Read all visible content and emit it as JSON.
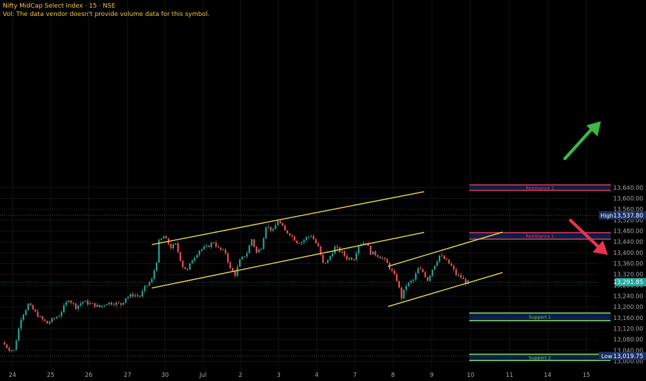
{
  "header": {
    "symbol_line": "Nifty MidCap Select Index · 15 · NSE",
    "volume_note": "Vol: The data vendor doesn't provide volume data for this symbol."
  },
  "colors": {
    "background": "#000000",
    "grid": "#141414",
    "up": "#26a69a",
    "down": "#ef5350",
    "trendline": "#f2e04b",
    "resistance_border": "#e5395b",
    "support_border": "#8ae26b",
    "zone_fill": "#0b1f44",
    "zone_text_resistance": "#e5395b",
    "zone_text_support": "#7ac96a",
    "arrow_up": "#3cb846",
    "arrow_down": "#e8334f",
    "axis_text": "#a6a6a6",
    "last_price_bg": "#26a69a",
    "hilo_bg": "#1b2f63"
  },
  "chart_data": {
    "type": "candlestick",
    "y_axis": {
      "range": [
        12990,
        13655
      ],
      "ticks": [
        "13,640.00",
        "13,600.00",
        "13,560.00",
        "13,520.00",
        "13,480.00",
        "13,440.00",
        "13,400.00",
        "13,360.00",
        "13,320.00",
        "13,280.00",
        "13,240.00",
        "13,200.00",
        "13,160.00",
        "13,120.00",
        "13,080.00",
        "13,040.00",
        "13,000.00"
      ]
    },
    "x_axis": {
      "labels": [
        "24",
        "25",
        "26",
        "27",
        "30",
        "Jul",
        "2",
        "3",
        "4",
        "7",
        "8",
        "9",
        "10",
        "11",
        "14",
        "15"
      ]
    },
    "price_path": [
      [
        0,
        13070
      ],
      [
        3,
        13045
      ],
      [
        5,
        13040
      ],
      [
        8,
        13160
      ],
      [
        11,
        13210
      ],
      [
        16,
        13160
      ],
      [
        19,
        13140
      ],
      [
        24,
        13170
      ],
      [
        28,
        13230
      ],
      [
        31,
        13200
      ],
      [
        34,
        13220
      ],
      [
        38,
        13210
      ],
      [
        41,
        13200
      ],
      [
        44,
        13215
      ],
      [
        47,
        13215
      ],
      [
        50,
        13210
      ],
      [
        52,
        13235
      ],
      [
        55,
        13245
      ],
      [
        58,
        13240
      ],
      [
        60,
        13270
      ],
      [
        63,
        13300
      ],
      [
        65,
        13370
      ],
      [
        66,
        13440
      ],
      [
        68,
        13460
      ],
      [
        71,
        13420
      ],
      [
        73,
        13430
      ],
      [
        76,
        13350
      ],
      [
        78,
        13335
      ],
      [
        80,
        13375
      ],
      [
        83,
        13410
      ],
      [
        86,
        13420
      ],
      [
        89,
        13440
      ],
      [
        91,
        13415
      ],
      [
        94,
        13400
      ],
      [
        96,
        13340
      ],
      [
        98,
        13320
      ],
      [
        100,
        13370
      ],
      [
        103,
        13400
      ],
      [
        105,
        13450
      ],
      [
        107,
        13400
      ],
      [
        109,
        13420
      ],
      [
        111,
        13500
      ],
      [
        114,
        13480
      ],
      [
        116,
        13520
      ],
      [
        119,
        13480
      ],
      [
        121,
        13470
      ],
      [
        124,
        13440
      ],
      [
        126,
        13440
      ],
      [
        128,
        13455
      ],
      [
        130,
        13465
      ],
      [
        133,
        13420
      ],
      [
        135,
        13360
      ],
      [
        137,
        13370
      ],
      [
        140,
        13420
      ],
      [
        143,
        13400
      ],
      [
        145,
        13380
      ],
      [
        148,
        13380
      ],
      [
        150,
        13430
      ],
      [
        153,
        13440
      ],
      [
        155,
        13400
      ],
      [
        157,
        13395
      ],
      [
        160,
        13380
      ],
      [
        162,
        13360
      ],
      [
        164,
        13330
      ],
      [
        166,
        13300
      ],
      [
        168,
        13235
      ],
      [
        170,
        13280
      ],
      [
        173,
        13300
      ],
      [
        175,
        13340
      ],
      [
        177,
        13330
      ],
      [
        179,
        13300
      ],
      [
        181,
        13340
      ],
      [
        184,
        13390
      ],
      [
        187,
        13370
      ],
      [
        189,
        13350
      ],
      [
        191,
        13320
      ],
      [
        193,
        13310
      ],
      [
        195,
        13290
      ],
      [
        196,
        13291.85
      ]
    ],
    "trend_channels": [
      {
        "upper": [
          [
            219,
            13430
          ],
          [
            612,
            13625
          ]
        ],
        "lower": [
          [
            219,
            13270
          ],
          [
            612,
            13475
          ]
        ]
      },
      {
        "upper": [
          [
            560,
            13350
          ],
          [
            725,
            13476
          ]
        ],
        "lower": [
          [
            560,
            13202
          ],
          [
            725,
            13327
          ]
        ]
      }
    ],
    "zones": [
      {
        "label": "Resistance 2",
        "kind": "resistance",
        "from": 13630,
        "to": 13650
      },
      {
        "label": "Resistance 1",
        "kind": "resistance",
        "from": 13450,
        "to": 13474
      },
      {
        "label": "Support 1",
        "kind": "support",
        "from": 13150,
        "to": 13178
      },
      {
        "label": "Support 2",
        "kind": "support",
        "from": 13003,
        "to": 13026
      }
    ],
    "markers": {
      "high": {
        "label": "High",
        "value": "13,537.80",
        "price": 13537.8
      },
      "last": {
        "value": "13,291.85",
        "price": 13291.85
      },
      "low": {
        "label": "Low",
        "value": "13,019.75",
        "price": 13019.75
      }
    },
    "arrows": [
      {
        "direction": "up",
        "icon": "arrow-up-icon"
      },
      {
        "direction": "down",
        "icon": "arrow-down-icon"
      }
    ]
  }
}
